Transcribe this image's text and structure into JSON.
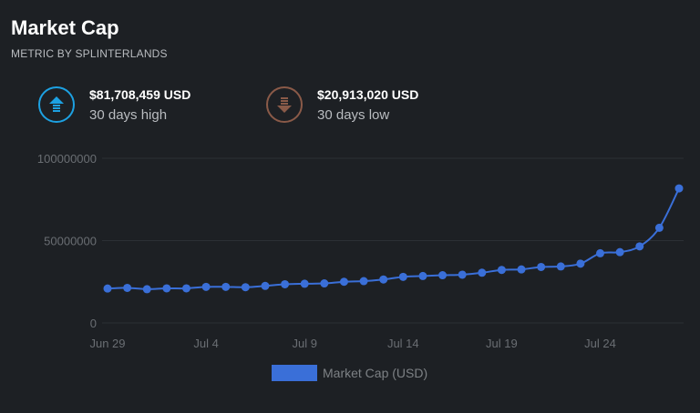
{
  "header": {
    "title": "Market Cap",
    "subtitle": "METRIC BY SPLINTERLANDS"
  },
  "stats": {
    "high": {
      "value": "$81,708,459 USD",
      "label": "30 days high",
      "icon": "arrow-up-icon",
      "color": "#1da1e2"
    },
    "low": {
      "value": "$20,913,020 USD",
      "label": "30 days low",
      "icon": "arrow-down-icon",
      "color": "#8a5a48"
    }
  },
  "colors": {
    "series": "#3a6fd8",
    "grid": "#2c3035",
    "tick": "#6a6e73"
  },
  "chart_data": {
    "type": "line",
    "ylim": [
      0,
      100000000
    ],
    "y_ticks": [
      {
        "value": 0,
        "label": "0"
      },
      {
        "value": 50000000,
        "label": "50000000"
      },
      {
        "value": 100000000,
        "label": "100000000"
      }
    ],
    "x_ticks": [
      {
        "index": 0,
        "label": "Jun 29"
      },
      {
        "index": 5,
        "label": "Jul 4"
      },
      {
        "index": 10,
        "label": "Jul 9"
      },
      {
        "index": 15,
        "label": "Jul 14"
      },
      {
        "index": 20,
        "label": "Jul 19"
      },
      {
        "index": 25,
        "label": "Jul 24"
      }
    ],
    "grid": true,
    "legend_position": "bottom",
    "series": [
      {
        "name": "Market Cap (USD)",
        "values": [
          20900000,
          21300000,
          20500000,
          21000000,
          21000000,
          21900000,
          21900000,
          21700000,
          22500000,
          23500000,
          23800000,
          24000000,
          25000000,
          25400000,
          26400000,
          28000000,
          28500000,
          29000000,
          29300000,
          30500000,
          32200000,
          32500000,
          34000000,
          34300000,
          36000000,
          42300000,
          43000000,
          46500000,
          57800000,
          81708459
        ]
      }
    ]
  }
}
